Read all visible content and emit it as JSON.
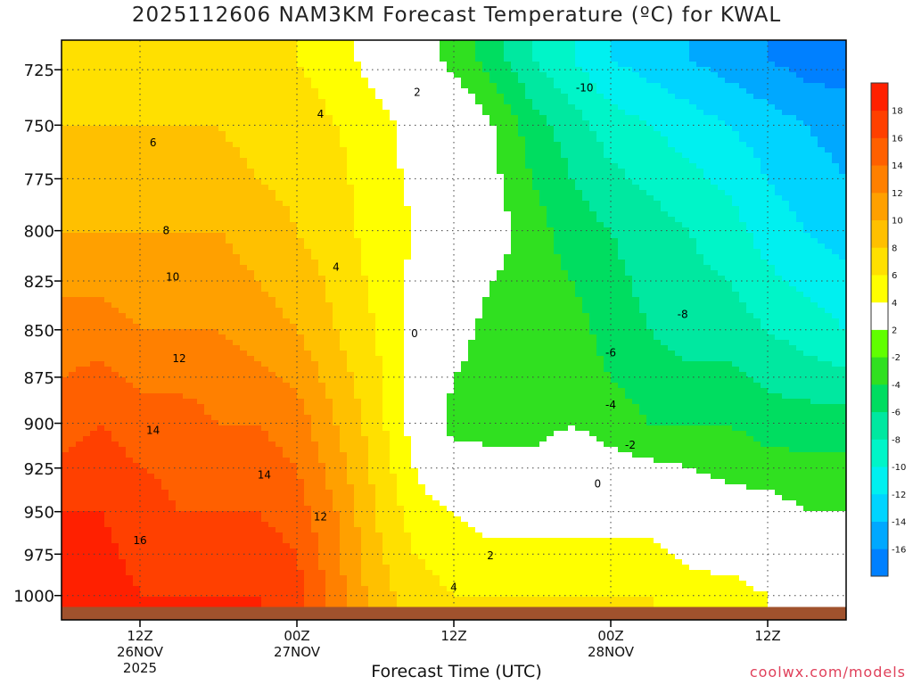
{
  "chart_data": {
    "type": "heatmap",
    "title": "2025112606 NAM3KM Forecast Temperature (ºC) for KWAL",
    "xlabel": "Forecast Time (UTC)",
    "ylabel": "",
    "credit": "coolwx.com/models",
    "yaxis": {
      "scale": "pressure (log)",
      "ticks": [
        725,
        750,
        775,
        800,
        825,
        850,
        875,
        900,
        925,
        950,
        975,
        1000
      ],
      "ylim": [
        1015,
        712
      ]
    },
    "xaxis": {
      "ticks": [
        {
          "hour": 12,
          "lines": [
            "12Z",
            "26NOV",
            "2025"
          ]
        },
        {
          "hour": 24,
          "lines": [
            "00Z",
            "27NOV"
          ]
        },
        {
          "hour": 36,
          "lines": [
            "12Z"
          ]
        },
        {
          "hour": 48,
          "lines": [
            "00Z",
            "28NOV"
          ]
        },
        {
          "hour": 60,
          "lines": [
            "12Z"
          ]
        }
      ],
      "xlim": [
        6,
        66
      ]
    },
    "grid": "dotted",
    "colorbar": {
      "placement": "right",
      "ticks": [
        18,
        16,
        14,
        12,
        10,
        8,
        6,
        4,
        2,
        -2,
        -4,
        -6,
        -8,
        -10,
        -12,
        -14,
        -16
      ],
      "colors": [
        "#0080ff",
        "#00a8ff",
        "#00d4ff",
        "#00f0f0",
        "#00f5c8",
        "#00e8a0",
        "#00dd60",
        "#30e020",
        "#60ff00",
        "#ffffff",
        "#ffff00",
        "#ffe000",
        "#ffc000",
        "#ffa000",
        "#ff8000",
        "#ff6000",
        "#ff4000",
        "#ff2000"
      ]
    },
    "field": {
      "description": "Temperature by forecast hour and pressure level",
      "hours": [
        6,
        9,
        12,
        15,
        18,
        21,
        24,
        27,
        30,
        33,
        36,
        39,
        42,
        45,
        48,
        51,
        54,
        57,
        60,
        63,
        66
      ],
      "levels": [
        720,
        750,
        800,
        850,
        900,
        950,
        1000
      ],
      "temps": [
        [
          5,
          5,
          5,
          5,
          5,
          4,
          4,
          3,
          1,
          0,
          -3,
          -5,
          -8,
          -10,
          -12,
          -13,
          -14,
          -15,
          -16,
          -17,
          -17
        ],
        [
          6,
          6,
          6,
          6,
          6,
          5,
          5,
          4,
          3,
          1,
          1,
          -2,
          -5,
          -7,
          -9,
          -10,
          -11,
          -12,
          -13,
          -14,
          -15
        ],
        [
          8,
          8,
          8,
          8,
          8,
          7,
          6,
          5,
          3,
          2,
          1,
          -1,
          -3,
          -5,
          -6,
          -7,
          -8,
          -9,
          -11,
          -12,
          -13
        ],
        [
          11,
          11,
          10,
          10,
          10,
          9,
          8,
          6,
          4,
          1,
          -1,
          -3,
          -3,
          -3,
          -5,
          -6,
          -7,
          -7,
          -8,
          -9,
          -10
        ],
        [
          13,
          14,
          13,
          13,
          12,
          12,
          11,
          8,
          5,
          1,
          -3,
          -3,
          -3,
          -2,
          -3,
          -4,
          -4,
          -4,
          -5,
          -5,
          -5
        ],
        [
          16,
          16,
          15,
          14,
          14,
          14,
          13,
          10,
          6,
          3,
          2,
          1,
          1,
          1,
          1,
          1,
          0,
          -1,
          -1,
          -2,
          -2
        ],
        [
          17,
          17,
          16,
          16,
          16,
          16,
          15,
          11,
          7,
          5,
          4,
          4,
          4,
          4,
          4,
          4,
          3,
          3,
          2,
          1,
          1
        ]
      ]
    },
    "contour_labels": [
      {
        "text": "2",
        "hour": 33.2,
        "p": 735
      },
      {
        "text": "-10",
        "hour": 46.0,
        "p": 733
      },
      {
        "text": "4",
        "hour": 25.8,
        "p": 745
      },
      {
        "text": "6",
        "hour": 13.0,
        "p": 758
      },
      {
        "text": "8",
        "hour": 14.0,
        "p": 800
      },
      {
        "text": "4",
        "hour": 27.0,
        "p": 818
      },
      {
        "text": "10",
        "hour": 14.5,
        "p": 823
      },
      {
        "text": "0",
        "hour": 33.0,
        "p": 852
      },
      {
        "text": "-8",
        "hour": 53.5,
        "p": 842
      },
      {
        "text": "-6",
        "hour": 48.0,
        "p": 862
      },
      {
        "text": "12",
        "hour": 15.0,
        "p": 865
      },
      {
        "text": "-4",
        "hour": 48.0,
        "p": 890
      },
      {
        "text": "14",
        "hour": 13.0,
        "p": 904
      },
      {
        "text": "-2",
        "hour": 49.5,
        "p": 912
      },
      {
        "text": "14",
        "hour": 21.5,
        "p": 929
      },
      {
        "text": "0",
        "hour": 47.0,
        "p": 934
      },
      {
        "text": "12",
        "hour": 25.8,
        "p": 953
      },
      {
        "text": "16",
        "hour": 12.0,
        "p": 967
      },
      {
        "text": "2",
        "hour": 38.8,
        "p": 976
      },
      {
        "text": "4",
        "hour": 36.0,
        "p": 995
      }
    ],
    "terrain": {
      "color": "#a0522d",
      "surface_pressure": 1007
    }
  }
}
